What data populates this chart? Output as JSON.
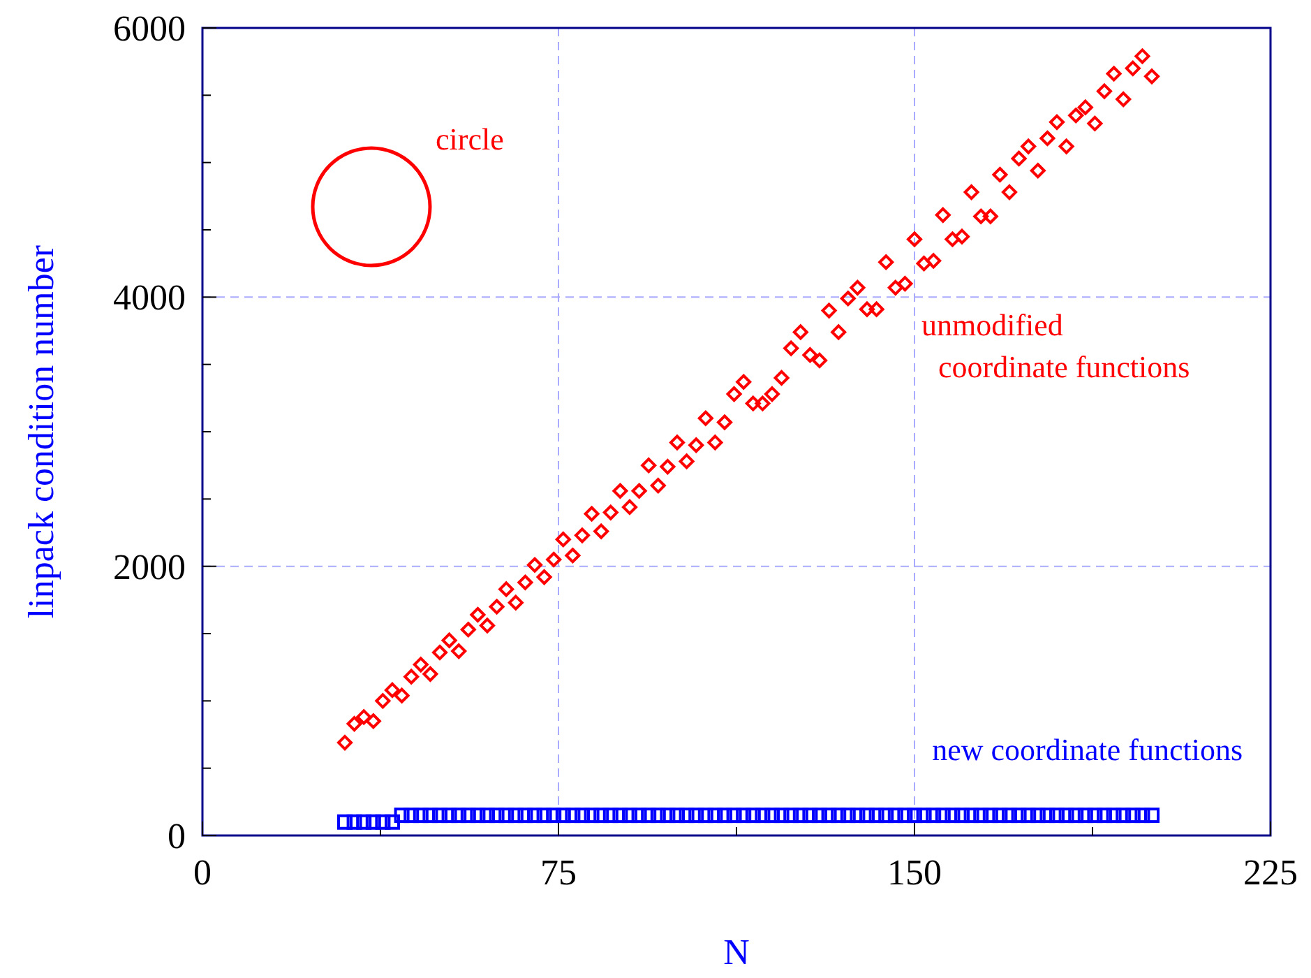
{
  "chart_data": {
    "type": "scatter",
    "xlabel": "N",
    "ylabel": "linpack condition number",
    "xlim": [
      0,
      225
    ],
    "ylim": [
      0,
      6000
    ],
    "xticks": [
      0,
      {
        "value": 37.5,
        "label": null
      },
      75,
      {
        "value": 112.5,
        "label": null
      },
      150,
      {
        "value": 187.5,
        "label": null
      },
      225
    ],
    "yticks": [
      0,
      {
        "value": 500,
        "label": null
      },
      {
        "value": 1000,
        "label": null
      },
      {
        "value": 1500,
        "label": null
      },
      2000,
      {
        "value": 2500,
        "label": null
      },
      {
        "value": 3000,
        "label": null
      },
      {
        "value": 3500,
        "label": null
      },
      4000,
      {
        "value": 4500,
        "label": null
      },
      {
        "value": 5000,
        "label": null
      },
      {
        "value": 5500,
        "label": null
      },
      6000
    ],
    "grid": true,
    "annotations": [
      "circle"
    ],
    "series": [
      {
        "name": "unmodified coordinate functions",
        "color": "#ff0000",
        "marker": "diamond",
        "x": [
          30,
          32,
          34,
          36,
          38,
          40,
          42,
          44,
          46,
          48,
          50,
          52,
          54,
          56,
          58,
          60,
          62,
          64,
          66,
          68,
          70,
          72,
          74,
          76,
          78,
          80,
          82,
          84,
          86,
          88,
          90,
          92,
          94,
          96,
          98,
          100,
          102,
          104,
          106,
          108,
          110,
          112,
          114,
          116,
          118,
          120,
          122,
          124,
          126,
          128,
          130,
          132,
          134,
          136,
          138,
          140,
          142,
          144,
          146,
          148,
          150,
          152,
          154,
          156,
          158,
          160,
          162,
          164,
          166,
          168,
          170,
          172,
          174,
          176,
          178,
          180,
          182,
          184,
          186,
          188,
          190,
          192,
          194,
          196,
          198,
          200
        ],
        "values": [
          690,
          830,
          880,
          850,
          1000,
          1080,
          1040,
          1180,
          1270,
          1200,
          1360,
          1450,
          1370,
          1530,
          1640,
          1560,
          1700,
          1830,
          1730,
          1880,
          2010,
          1920,
          2050,
          2200,
          2080,
          2230,
          2390,
          2260,
          2400,
          2560,
          2440,
          2560,
          2750,
          2600,
          2740,
          2920,
          2780,
          2900,
          3100,
          2920,
          3070,
          3280,
          3370,
          3210,
          3210,
          3280,
          3400,
          3620,
          3740,
          3570,
          3530,
          3900,
          3740,
          3990,
          4070,
          3910,
          3910,
          4260,
          4070,
          4100,
          4430,
          4250,
          4270,
          4610,
          4430,
          4450,
          4780,
          4600,
          4600,
          4910,
          4780,
          5030,
          5120,
          4940,
          5180,
          5300,
          5120,
          5350,
          5410,
          5290,
          5530,
          5660,
          5470,
          5700,
          5790,
          5640
        ]
      },
      {
        "name": "new coordinate functions",
        "color": "#0000ff",
        "marker": "square",
        "x": [
          30,
          32,
          34,
          36,
          38,
          40,
          42,
          44,
          46,
          48,
          50,
          52,
          54,
          56,
          58,
          60,
          62,
          64,
          66,
          68,
          70,
          72,
          74,
          76,
          78,
          80,
          82,
          84,
          86,
          88,
          90,
          92,
          94,
          96,
          98,
          100,
          102,
          104,
          106,
          108,
          110,
          112,
          114,
          116,
          118,
          120,
          122,
          124,
          126,
          128,
          130,
          132,
          134,
          136,
          138,
          140,
          142,
          144,
          146,
          148,
          150,
          152,
          154,
          156,
          158,
          160,
          162,
          164,
          166,
          168,
          170,
          172,
          174,
          176,
          178,
          180,
          182,
          184,
          186,
          188,
          190,
          192,
          194,
          196,
          198,
          200
        ],
        "values": [
          100,
          100,
          100,
          100,
          100,
          100,
          150,
          150,
          150,
          150,
          150,
          150,
          150,
          150,
          150,
          150,
          150,
          150,
          150,
          150,
          150,
          150,
          150,
          150,
          150,
          150,
          150,
          150,
          150,
          150,
          150,
          150,
          150,
          150,
          150,
          150,
          150,
          150,
          150,
          150,
          150,
          150,
          150,
          150,
          150,
          150,
          150,
          150,
          150,
          150,
          150,
          150,
          150,
          150,
          150,
          150,
          150,
          150,
          150,
          150,
          150,
          150,
          150,
          150,
          150,
          150,
          150,
          150,
          150,
          150,
          150,
          150,
          150,
          150,
          150,
          150,
          150,
          150,
          150,
          150,
          150,
          150,
          150,
          150,
          150,
          150
        ]
      }
    ]
  }
}
